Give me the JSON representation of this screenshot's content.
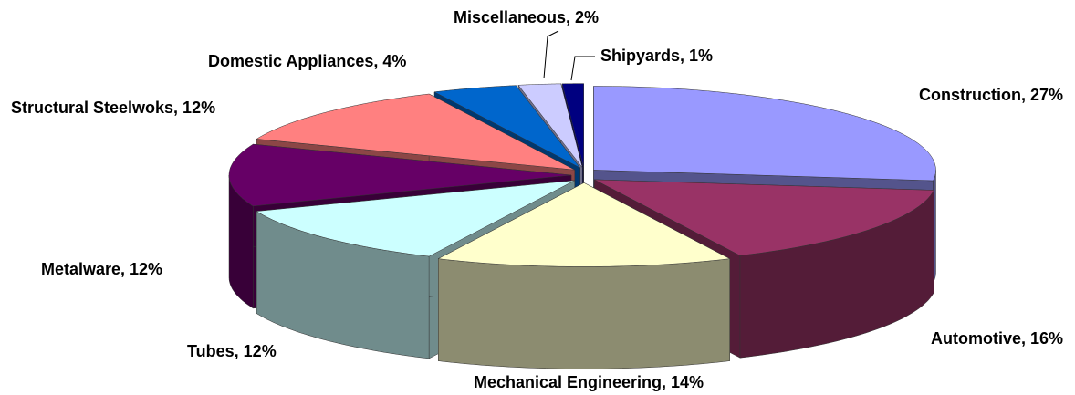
{
  "chart_data": {
    "type": "pie3d",
    "categories": [
      "Construction",
      "Automotive",
      "Mechanical Engineering",
      "Tubes",
      "Metalware",
      "Structural Steelwoks",
      "Domestic Appliances",
      "Miscellaneous",
      "Shipyards"
    ],
    "values": [
      27,
      16,
      14,
      12,
      12,
      12,
      4,
      2,
      1
    ],
    "value_labels": [
      "Construction, 27%",
      "Automotive, 16%",
      "Mechanical Engineering, 14%",
      "Tubes, 12%",
      "Metalware, 12%",
      "Structural Steelwoks, 12%",
      "Domestic Appliances, 4%",
      "Miscellaneous, 2%",
      "Shipyards, 1%"
    ],
    "colors": [
      "#9999ff",
      "#993366",
      "#ffffcc",
      "#ccffff",
      "#660066",
      "#ff8080",
      "#0066cc",
      "#ccccff",
      "#000080"
    ]
  }
}
